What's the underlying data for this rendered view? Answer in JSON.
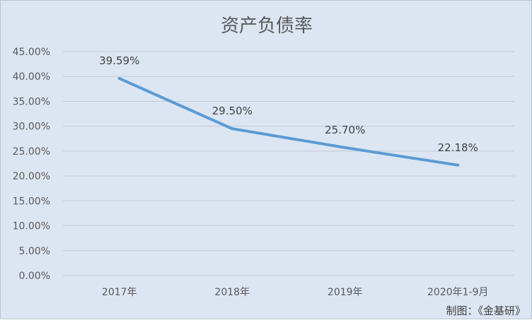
{
  "chart_data": {
    "type": "line",
    "title": "资产负债率",
    "categories": [
      "2017年",
      "2018年",
      "2019年",
      "2020年1-9月"
    ],
    "series": [
      {
        "values": [
          39.59,
          29.5,
          25.7,
          22.18
        ],
        "labels": [
          "39.59%",
          "29.50%",
          "25.70%",
          "22.18%"
        ],
        "color": "#5b9bd5"
      }
    ],
    "ylim": [
      0,
      45
    ],
    "yticks": [
      "0.00%",
      "5.00%",
      "10.00%",
      "15.00%",
      "20.00%",
      "25.00%",
      "30.00%",
      "35.00%",
      "40.00%",
      "45.00%"
    ],
    "grid": true,
    "legend": "none",
    "credit": "制图：《金基研》"
  }
}
